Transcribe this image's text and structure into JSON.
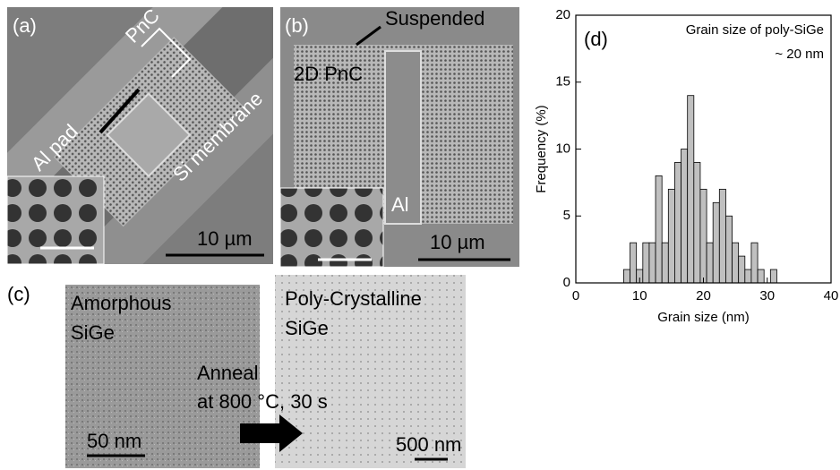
{
  "panels": {
    "a": {
      "label": "(a)",
      "pnc": "PnC",
      "pad": "Al pad",
      "membrane": "Si membrane",
      "scale": "10 µm"
    },
    "b": {
      "label": "(b)",
      "suspended": "Suspended",
      "pnc": "2D PnC",
      "al": "Al",
      "scale": "10 µm"
    },
    "c": {
      "label": "(c)",
      "left_1": "Amorphous",
      "left_2": "SiGe",
      "right_1": "Poly-Crystalline",
      "right_2": "SiGe",
      "anneal_1": "Anneal",
      "anneal_2": "at 800 °C, 30 s",
      "scale_left": "50 nm",
      "scale_right": "500 nm"
    }
  },
  "chart_data": {
    "type": "histogram",
    "panel_label": "(d)",
    "annotations": [
      "Grain size of poly-SiGe",
      "~ 20 nm"
    ],
    "xlabel": "Grain size (nm)",
    "ylabel": "Frequency (%)",
    "bins": [
      7.5,
      8.5,
      9.5,
      10.5,
      11.5,
      12.5,
      13.5,
      14.5,
      15.5,
      16.5,
      17.5,
      18.5,
      19.5,
      20.5,
      21.5,
      22.5,
      23.5,
      24.5,
      25.5,
      26.5,
      27.5,
      28.5,
      29.5,
      30.5,
      31.5
    ],
    "values": [
      1,
      3,
      1,
      3,
      3,
      8,
      3,
      7,
      9,
      10,
      14,
      9,
      7,
      3,
      6,
      7,
      5,
      3,
      2,
      1,
      3,
      1,
      0,
      1
    ],
    "color": "#c0c0c0",
    "xlim": [
      0,
      40
    ],
    "ylim": [
      0,
      20
    ],
    "xticks": [
      0,
      10,
      20,
      30,
      40
    ],
    "yticks": [
      0,
      5,
      10,
      15,
      20
    ]
  }
}
